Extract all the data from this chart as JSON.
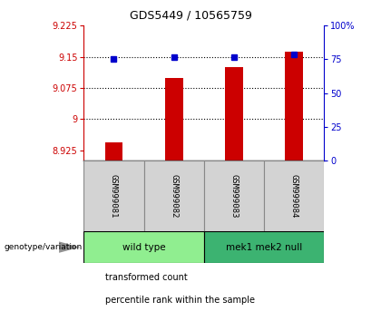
{
  "title": "GDS5449 / 10565759",
  "samples": [
    "GSM999081",
    "GSM999082",
    "GSM999083",
    "GSM999084"
  ],
  "bar_values": [
    8.944,
    9.1,
    9.125,
    9.162
  ],
  "percentile_values": [
    75.5,
    76.5,
    77.0,
    78.5
  ],
  "bar_color": "#CC0000",
  "dot_color": "#0000CC",
  "ylim_left": [
    8.9,
    9.225
  ],
  "ylim_right": [
    0,
    100
  ],
  "yticks_left": [
    8.925,
    9.0,
    9.075,
    9.15,
    9.225
  ],
  "ytick_labels_left": [
    "8.925",
    "9",
    "9.075",
    "9.15",
    "9.225"
  ],
  "yticks_right": [
    0,
    25,
    50,
    75,
    100
  ],
  "ytick_labels_right": [
    "0",
    "25",
    "50",
    "75",
    "100%"
  ],
  "gridlines_at": [
    9.15,
    9.075,
    9.0
  ],
  "groups": [
    {
      "label": "wild type",
      "samples": [
        0,
        1
      ],
      "color": "#90EE90"
    },
    {
      "label": "mek1 mek2 null",
      "samples": [
        2,
        3
      ],
      "color": "#3CB371"
    }
  ],
  "legend_items": [
    {
      "color": "#CC0000",
      "label": "transformed count"
    },
    {
      "color": "#0000CC",
      "label": "percentile rank within the sample"
    }
  ],
  "genotype_label": "genotype/variation",
  "background_color": "#FFFFFF",
  "plot_bg_color": "#FFFFFF",
  "bar_width": 0.3,
  "x_positions": [
    1,
    2,
    3,
    4
  ],
  "gray_color": "#D3D3D3",
  "gray_border": "#888888"
}
